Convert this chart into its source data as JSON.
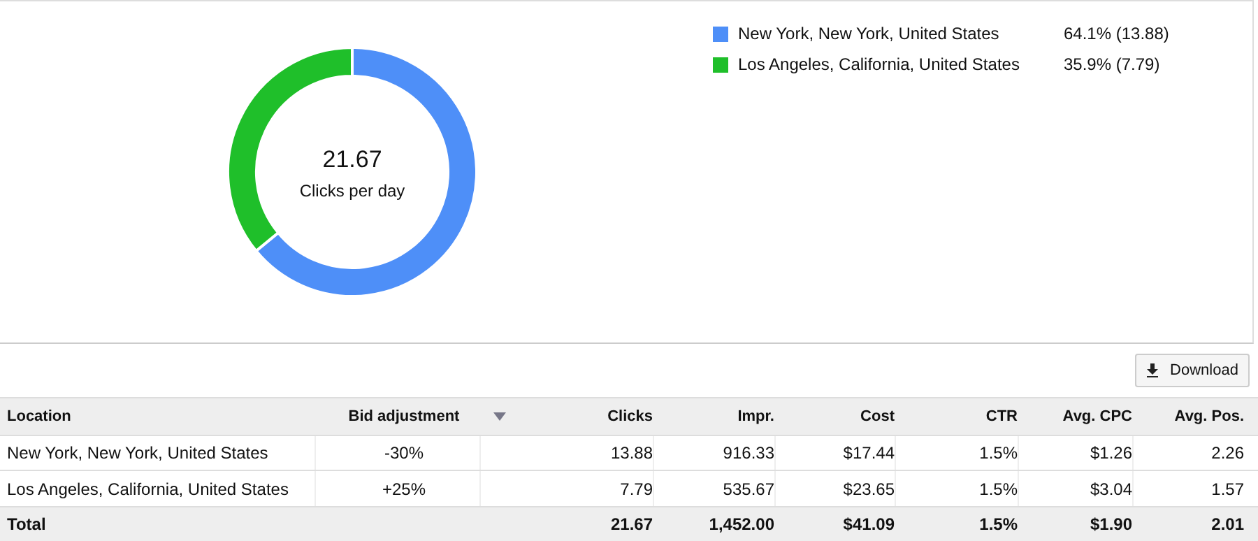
{
  "chart_data": [
    {
      "type": "donut",
      "categories": [
        "New York, New York, United States",
        "Los Angeles, California, United States"
      ],
      "values": [
        13.88,
        7.79
      ],
      "colors": [
        "#4e8ff8",
        "#1fbf2a"
      ],
      "value_labels": [
        "64.1% (13.88)",
        "35.9% (7.79)"
      ],
      "legend": "top right",
      "annotations": [
        "21.67",
        "Clicks per day"
      ]
    },
    {
      "type": "other",
      "annotations": [
        "Download",
        "Location",
        "Bid adjustment",
        "Clicks",
        "Impr.",
        "Cost",
        "CTR",
        "Avg. CPC",
        "Avg. Pos.",
        "New York, New York, United States",
        "-30%",
        "13.88",
        "916.33",
        "$17.44",
        "1.5%",
        "$1.26",
        "2.26",
        "Los Angeles, California, United States",
        "+25%",
        "7.79",
        "535.67",
        "$23.65",
        "1.5%",
        "$3.04",
        "1.57",
        "Total",
        null,
        "21.67",
        "1,452.00",
        "$41.09",
        "1.5%",
        "$1.90",
        "2.01"
      ]
    }
  ]
}
